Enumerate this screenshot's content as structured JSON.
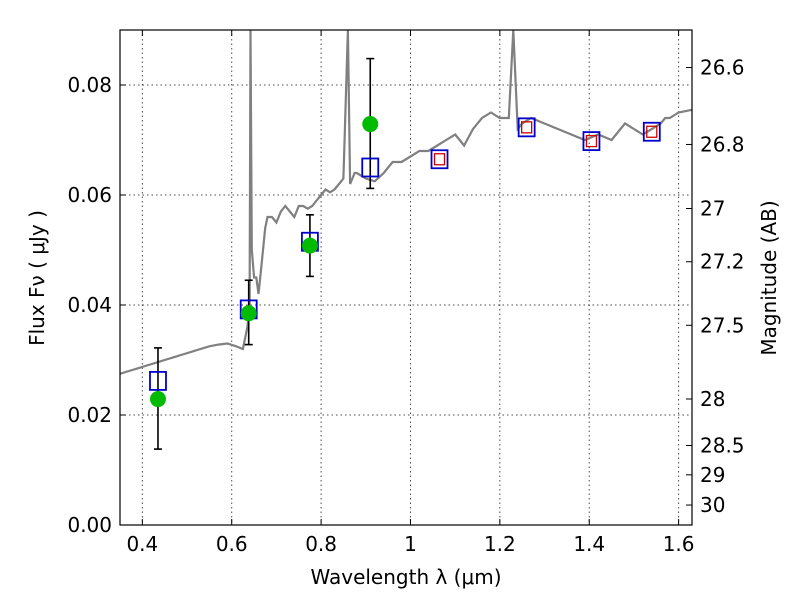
{
  "chart_data": {
    "type": "scatter",
    "xlabel": "Wavelength  λ (μm)",
    "ylabel": "Flux  Fν  ( μJy )",
    "y2label": "Magnitude (AB)",
    "xlim": [
      0.35,
      1.63
    ],
    "ylim": [
      0.0,
      0.09
    ],
    "grid": true,
    "x_ticks": [
      0.4,
      0.6,
      0.8,
      1.0,
      1.2,
      1.4,
      1.6
    ],
    "x_tick_labels": [
      "0.4",
      "0.6",
      "0.8",
      "1",
      "1.2",
      "1.4",
      "1.6"
    ],
    "y_ticks": [
      0.0,
      0.02,
      0.04,
      0.06,
      0.08
    ],
    "y_tick_labels": [
      "0.00",
      "0.02",
      "0.04",
      "0.06",
      "0.08"
    ],
    "y2_ticks": [
      26.6,
      26.8,
      27.0,
      27.2,
      27.5,
      28.0,
      28.5,
      29.0,
      30.0
    ],
    "y2_tick_labels": [
      "26.6",
      "26.8",
      "27",
      "27.2",
      "27.5",
      "28",
      "28.5",
      "29",
      "30"
    ],
    "colors": {
      "model": "#808080",
      "observed": "#00bb00",
      "synthetic": "#0000cc",
      "inner": "#cc0000",
      "errorbar": "#000000"
    },
    "model_spectrum": {
      "x": [
        0.35,
        0.37,
        0.39,
        0.41,
        0.43,
        0.45,
        0.47,
        0.49,
        0.51,
        0.53,
        0.55,
        0.57,
        0.59,
        0.61,
        0.625,
        0.635,
        0.64,
        0.642,
        0.645,
        0.65,
        0.655,
        0.66,
        0.665,
        0.67,
        0.675,
        0.68,
        0.69,
        0.7,
        0.71,
        0.72,
        0.73,
        0.74,
        0.75,
        0.76,
        0.77,
        0.78,
        0.79,
        0.8,
        0.81,
        0.82,
        0.83,
        0.84,
        0.85,
        0.86,
        0.865,
        0.87,
        0.875,
        0.88,
        0.9,
        0.92,
        0.94,
        0.96,
        0.98,
        1.0,
        1.02,
        1.04,
        1.06,
        1.08,
        1.1,
        1.12,
        1.14,
        1.16,
        1.18,
        1.2,
        1.22,
        1.23,
        1.24,
        1.25,
        1.27,
        1.3,
        1.33,
        1.36,
        1.39,
        1.42,
        1.45,
        1.47,
        1.48,
        1.5,
        1.52,
        1.54,
        1.56,
        1.57,
        1.58,
        1.6,
        1.63
      ],
      "y": [
        0.0275,
        0.028,
        0.0285,
        0.029,
        0.0295,
        0.03,
        0.0305,
        0.031,
        0.0315,
        0.032,
        0.0325,
        0.0328,
        0.033,
        0.0325,
        0.032,
        0.036,
        0.04,
        0.09,
        0.05,
        0.045,
        0.045,
        0.042,
        0.046,
        0.05,
        0.054,
        0.056,
        0.056,
        0.055,
        0.057,
        0.058,
        0.057,
        0.056,
        0.058,
        0.058,
        0.0575,
        0.058,
        0.059,
        0.06,
        0.061,
        0.0605,
        0.061,
        0.062,
        0.063,
        0.09,
        0.062,
        0.063,
        0.064,
        0.064,
        0.063,
        0.0625,
        0.064,
        0.066,
        0.066,
        0.067,
        0.068,
        0.068,
        0.069,
        0.07,
        0.071,
        0.069,
        0.072,
        0.074,
        0.075,
        0.074,
        0.074,
        0.09,
        0.072,
        0.073,
        0.074,
        0.073,
        0.072,
        0.071,
        0.07,
        0.071,
        0.07,
        0.072,
        0.073,
        0.072,
        0.071,
        0.072,
        0.073,
        0.074,
        0.074,
        0.075,
        0.0755
      ]
    },
    "observed_points": [
      {
        "x": 0.435,
        "y": 0.0229,
        "err_low": 0.0138,
        "err_high": 0.0322
      },
      {
        "x": 0.638,
        "y": 0.0385,
        "err_low": 0.0328,
        "err_high": 0.0445
      },
      {
        "x": 0.775,
        "y": 0.0508,
        "err_low": 0.0452,
        "err_high": 0.0564
      },
      {
        "x": 0.91,
        "y": 0.0729,
        "err_low": 0.0612,
        "err_high": 0.0848
      }
    ],
    "synthetic_points": [
      {
        "x": 0.435,
        "y": 0.0262,
        "inner": false
      },
      {
        "x": 0.638,
        "y": 0.0392,
        "inner": false
      },
      {
        "x": 0.775,
        "y": 0.0515,
        "inner": false
      },
      {
        "x": 0.91,
        "y": 0.065,
        "inner": false
      },
      {
        "x": 1.065,
        "y": 0.0665,
        "inner": true
      },
      {
        "x": 1.26,
        "y": 0.0723,
        "inner": true
      },
      {
        "x": 1.405,
        "y": 0.0698,
        "inner": true
      },
      {
        "x": 1.54,
        "y": 0.0715,
        "inner": true
      }
    ]
  }
}
